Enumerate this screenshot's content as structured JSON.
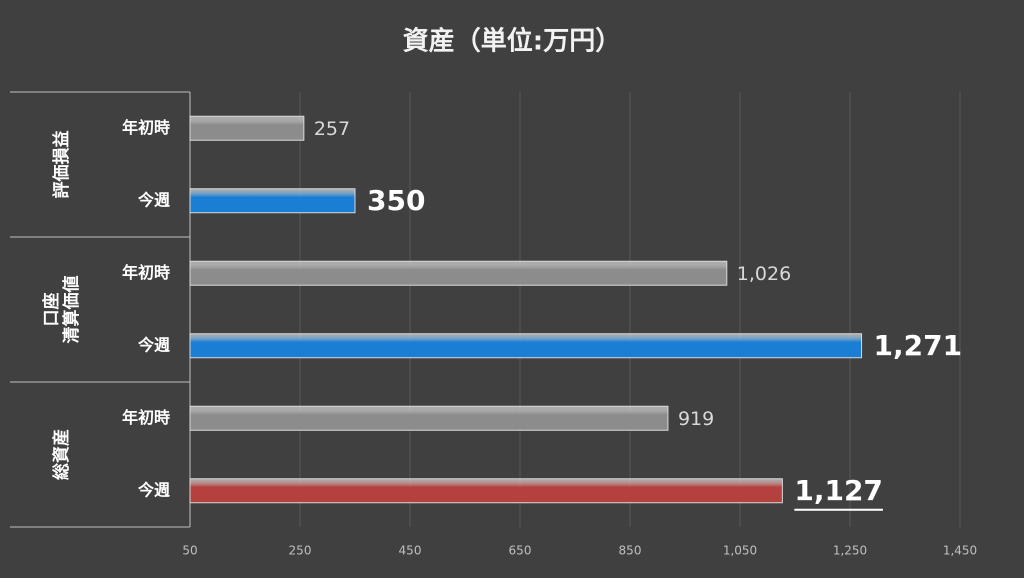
{
  "chart_data": {
    "type": "bar",
    "orientation": "horizontal",
    "title": "資産（単位:万円）",
    "groups": [
      {
        "label_lines": [
          "評価損益"
        ]
      },
      {
        "label_lines": [
          "口座",
          "清算価値"
        ]
      },
      {
        "label_lines": [
          "総資産"
        ]
      }
    ],
    "categories": [
      "年初時",
      "今週",
      "年初時",
      "今週",
      "年初時",
      "今週"
    ],
    "values": [
      257,
      350,
      1026,
      1271,
      919,
      1127
    ],
    "value_labels": [
      "257",
      "350",
      "1,026",
      "1,271",
      "919",
      "1,127"
    ],
    "colors": [
      "#8c8c8c",
      "#1a7fd4",
      "#8c8c8c",
      "#1a7fd4",
      "#8c8c8c",
      "#b5413e"
    ],
    "xlim": [
      50,
      1450
    ],
    "xticks": [
      50,
      250,
      450,
      650,
      850,
      {
        "value": 1050,
        "label": "1,050"
      },
      {
        "value": 1250,
        "label": "1,250"
      },
      {
        "value": 1450,
        "label": "1,450"
      }
    ],
    "grid": true
  }
}
